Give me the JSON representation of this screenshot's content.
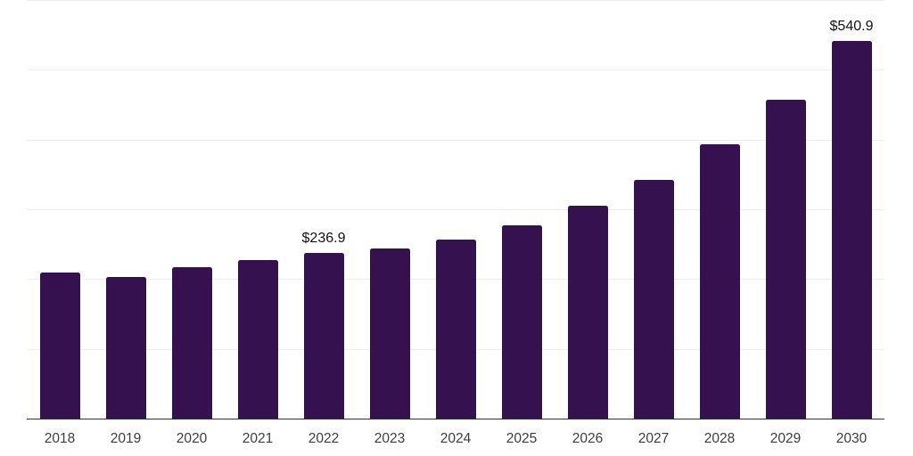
{
  "chart_data": {
    "type": "bar",
    "title": "",
    "xlabel": "",
    "ylabel": "",
    "categories": [
      "2018",
      "2019",
      "2020",
      "2021",
      "2022",
      "2023",
      "2024",
      "2025",
      "2026",
      "2027",
      "2028",
      "2029",
      "2030"
    ],
    "values": [
      209.2,
      203.4,
      216.5,
      227.7,
      236.9,
      244.3,
      257.1,
      277.5,
      304.8,
      342.8,
      392.7,
      456.6,
      540.9
    ],
    "data_labels": [
      "",
      "",
      "",
      "",
      "$236.9",
      "",
      "",
      "",
      "",
      "",
      "",
      "",
      "$540.9"
    ],
    "ylim": [
      0,
      600
    ],
    "gridline_step": 100,
    "grid": true,
    "legend": false,
    "colors": {
      "bar": "#35124F",
      "gridline": "#EDEDED",
      "axis_line": "#333333",
      "tick_label": "#3D3D3D",
      "data_label": "#111111",
      "background": "#FFFFFF"
    }
  }
}
